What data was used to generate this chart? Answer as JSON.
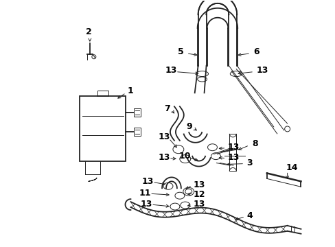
{
  "background_color": "#ffffff",
  "line_color": "#222222",
  "label_color": "#000000",
  "figsize": [
    4.89,
    3.6
  ],
  "dpi": 100,
  "label_fontsize": 9,
  "lw_main": 1.3,
  "lw_thin": 0.7
}
